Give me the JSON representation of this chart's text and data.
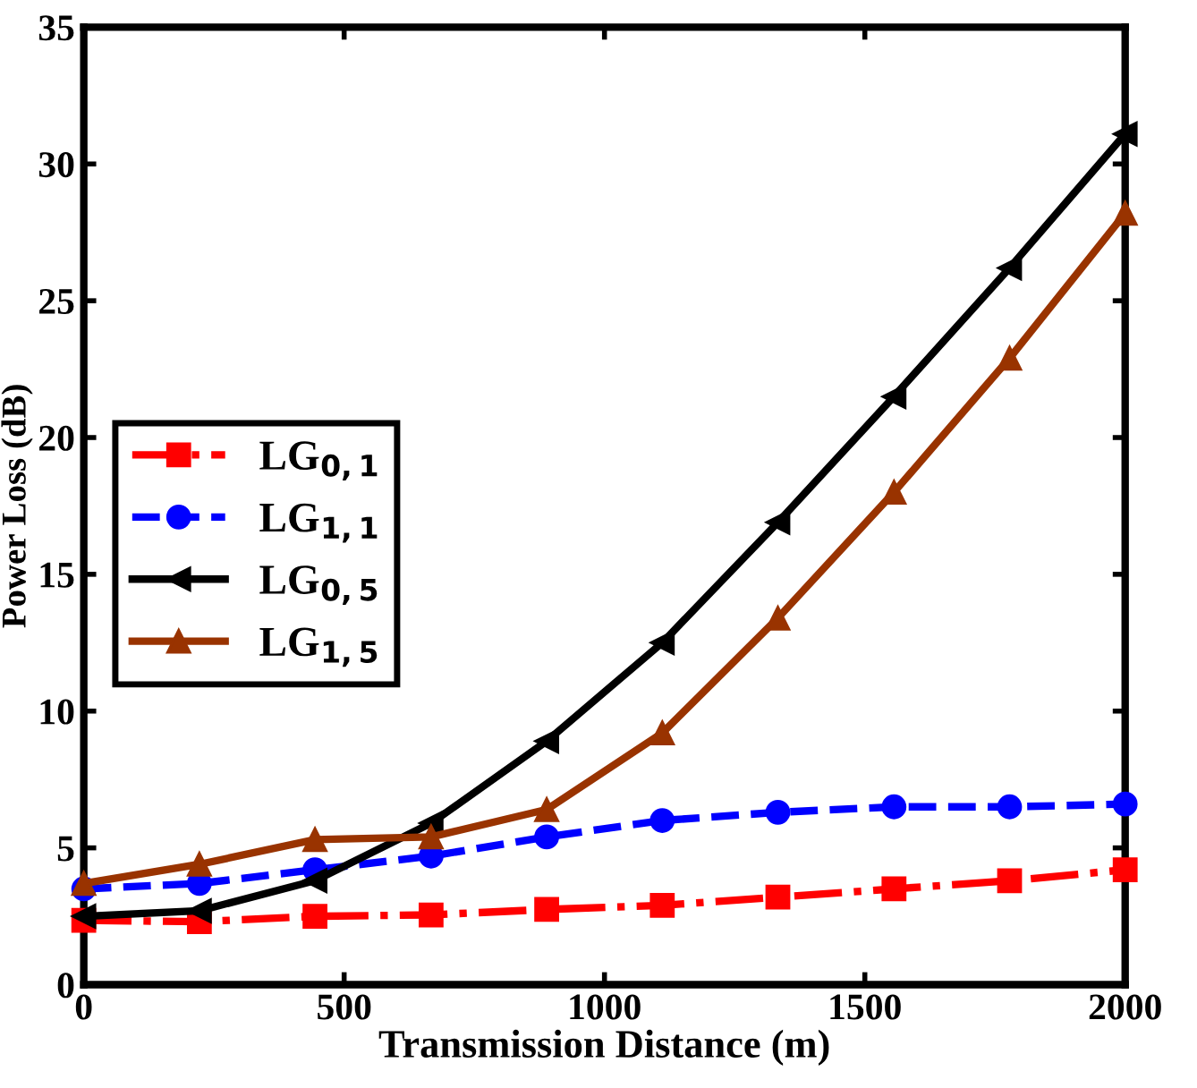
{
  "chart_data": {
    "type": "line",
    "xlabel": "Transmission Distance (m)",
    "ylabel": "Power Loss (dB)",
    "x": [
      0,
      222,
      444,
      667,
      889,
      1111,
      1333,
      1556,
      1778,
      2000
    ],
    "series": [
      {
        "name": "LG$_{0,1}$",
        "color": "#ff0000",
        "marker": "square",
        "line_style": "dashdot",
        "values": [
          2.35,
          2.3,
          2.5,
          2.55,
          2.75,
          2.9,
          3.2,
          3.5,
          3.8,
          4.2
        ]
      },
      {
        "name": "LG$_{1,1}$",
        "color": "#0000ff",
        "marker": "circle",
        "line_style": "dashed",
        "values": [
          3.5,
          3.7,
          4.2,
          4.7,
          5.4,
          6.0,
          6.3,
          6.5,
          6.5,
          6.6
        ]
      },
      {
        "name": "LG$_{0,5}$",
        "color": "#000000",
        "marker": "triangle-left",
        "line_style": "solid",
        "values": [
          2.5,
          2.7,
          3.8,
          5.9,
          8.9,
          12.5,
          16.9,
          21.5,
          26.2,
          31.1
        ]
      },
      {
        "name": "LG$_{1,5}$",
        "color": "#993300",
        "marker": "triangle",
        "line_style": "solid",
        "values": [
          3.7,
          4.4,
          5.3,
          5.4,
          6.4,
          9.2,
          13.4,
          18.0,
          22.9,
          28.2
        ]
      }
    ],
    "xlim": [
      0,
      2000
    ],
    "xticks": [
      0,
      500,
      1000,
      1500,
      2000
    ],
    "ylim": [
      0,
      35
    ],
    "yticks": [
      0,
      5,
      10,
      15,
      20,
      25,
      30,
      35
    ],
    "grid": false,
    "legend": "left"
  }
}
